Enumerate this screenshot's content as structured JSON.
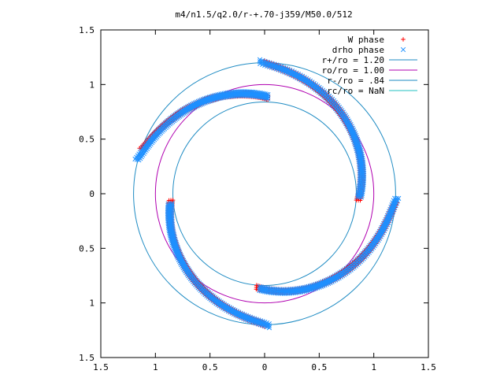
{
  "chart_data": {
    "type": "scatter",
    "title": "m4/n1.5/q2.0/r-+.70-j359/M50.0/512",
    "xlim": [
      -1.5,
      1.5
    ],
    "ylim": [
      -1.5,
      1.5
    ],
    "x_ticks": [
      -1.5,
      -1,
      -0.5,
      0,
      0.5,
      1,
      1.5
    ],
    "y_ticks": [
      -1.5,
      -1,
      -0.5,
      0,
      0.5,
      1,
      1.5
    ],
    "x_tick_labels": [
      "1.5",
      "1",
      "0.5",
      "0",
      "0.5",
      "1",
      "1.5"
    ],
    "y_tick_labels": [
      "1.5",
      "1",
      "0.5",
      "0",
      "0.5",
      "1",
      "1.5"
    ],
    "grid": false,
    "legend_position": "top-right",
    "series": [
      {
        "name": "W phase",
        "marker": "plus",
        "color": "#ff0000",
        "arms": [
          {
            "start_deg": 160,
            "end_deg": 88,
            "r_start": 1.2,
            "r_end": 0.88
          },
          {
            "start_deg": 90,
            "end_deg": -4,
            "r_start": 1.2,
            "r_end": 0.86
          },
          {
            "start_deg": -4,
            "end_deg": -95,
            "r_start": 1.2,
            "r_end": 0.86
          },
          {
            "start_deg": -90,
            "end_deg": -176,
            "r_start": 1.2,
            "r_end": 0.86
          }
        ]
      },
      {
        "name": "drho phase",
        "marker": "cross",
        "color": "#1e90ff",
        "arms": [
          {
            "start_deg": 165,
            "end_deg": 88,
            "r_start": 1.21,
            "r_end": 0.89
          },
          {
            "start_deg": 92,
            "end_deg": -2,
            "r_start": 1.21,
            "r_end": 0.87
          },
          {
            "start_deg": -2,
            "end_deg": -93,
            "r_start": 1.21,
            "r_end": 0.87
          },
          {
            "start_deg": -88,
            "end_deg": -174,
            "r_start": 1.21,
            "r_end": 0.87
          }
        ]
      },
      {
        "name": "r+/ro = 1.20",
        "type": "circle",
        "radius": 1.2,
        "color": "#1e8bc3"
      },
      {
        "name": "ro/ro = 1.00",
        "type": "circle",
        "radius": 1.0,
        "color": "#b000b0"
      },
      {
        "name": "r-/ro = .84",
        "type": "circle",
        "radius": 0.84,
        "color": "#1e8bc3"
      },
      {
        "name": "rc/ro = NaN",
        "type": "circle",
        "radius": null,
        "color": "#20c0c0"
      }
    ]
  }
}
